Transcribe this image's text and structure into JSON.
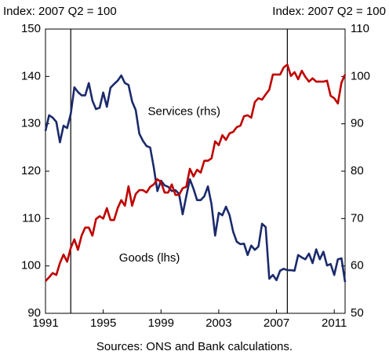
{
  "chart_data": {
    "type": "line",
    "left_axis_label": "Index: 2007 Q2 = 100",
    "right_axis_label": "Index: 2007 Q2 = 100",
    "source": "Sources: ONS and Bank calculations.",
    "annotations": [
      {
        "text": "Services (rhs)",
        "x": 2000.6,
        "y": 132.5
      },
      {
        "text": "Goods (lhs)",
        "x": 1998.2,
        "y": 101.6
      }
    ],
    "vlines": [
      1992.75,
      2007.75
    ],
    "x": [
      1991,
      1991.25,
      1991.5,
      1991.75,
      1992,
      1992.25,
      1992.5,
      1992.75,
      1993,
      1993.25,
      1993.5,
      1993.75,
      1994,
      1994.25,
      1994.5,
      1994.75,
      1995,
      1995.25,
      1995.5,
      1995.75,
      1996,
      1996.25,
      1996.5,
      1996.75,
      1997,
      1997.25,
      1997.5,
      1997.75,
      1998,
      1998.25,
      1998.5,
      1998.75,
      1999,
      1999.25,
      1999.5,
      1999.75,
      2000,
      2000.25,
      2000.5,
      2000.75,
      2001,
      2001.25,
      2001.5,
      2001.75,
      2002,
      2002.25,
      2002.5,
      2002.75,
      2003,
      2003.25,
      2003.5,
      2003.75,
      2004,
      2004.25,
      2004.5,
      2004.75,
      2005,
      2005.25,
      2005.5,
      2005.75,
      2006,
      2006.25,
      2006.5,
      2006.75,
      2007,
      2007.25,
      2007.5,
      2007.75,
      2008,
      2008.25,
      2008.5,
      2008.75,
      2009,
      2009.25,
      2009.5,
      2009.75,
      2010,
      2010.25,
      2010.5,
      2010.75,
      2011,
      2011.25,
      2011.5,
      2011.75
    ],
    "series": [
      {
        "name": "Goods (lhs)",
        "color": "#1b2a6b",
        "axis": "y",
        "values": [
          128.5,
          131.8,
          131.3,
          130.4,
          126.1,
          129.6,
          129.1,
          132.1,
          137.7,
          136.7,
          136,
          136,
          138.6,
          134.9,
          133.1,
          133.4,
          136.6,
          133.6,
          137.6,
          138.4,
          139.1,
          140.2,
          138.6,
          138.2,
          134.7,
          132.9,
          127.9,
          126.4,
          125.3,
          125,
          120.8,
          115.8,
          118,
          117,
          116.7,
          115.8,
          116,
          115.2,
          110.9,
          114.7,
          118.3,
          116.3,
          113.9,
          113.9,
          114.7,
          116.8,
          113,
          106.4,
          111.2,
          110.7,
          112.5,
          110.7,
          107.2,
          105.1,
          104.6,
          104.7,
          102.3,
          104.3,
          103.4,
          104.1,
          108.9,
          108.2,
          97.3,
          98.1,
          97,
          99,
          99.4,
          99.1,
          99.1,
          99,
          102.3,
          101.8,
          101.4,
          102.6,
          100.6,
          103.5,
          101.4,
          103,
          100.1,
          100.4,
          98.1,
          101.4,
          101.6,
          96.6
        ]
      },
      {
        "name": "Services (rhs)",
        "color": "#c00000",
        "axis": "y2",
        "values": [
          56.8,
          57.6,
          58.5,
          58.1,
          60.6,
          62.4,
          60.9,
          63.8,
          65.6,
          63.4,
          66.4,
          68.1,
          68.1,
          66.4,
          69.9,
          70.5,
          70,
          72.2,
          69.7,
          69.7,
          72.2,
          73.9,
          72.7,
          76.8,
          72.7,
          75.2,
          76,
          76,
          75.5,
          76.7,
          77.2,
          78.3,
          77.7,
          75.5,
          75.5,
          77.2,
          75,
          75,
          76.4,
          76.7,
          80.5,
          78.9,
          80.3,
          79.7,
          82.2,
          82.2,
          82.7,
          86.3,
          85.5,
          87.6,
          86.6,
          88,
          88.3,
          89.3,
          89.6,
          91.6,
          91.8,
          91.3,
          94.6,
          95.4,
          95.1,
          96.2,
          97.2,
          100.4,
          100.4,
          100.4,
          101.9,
          102.5,
          100.1,
          100.9,
          99.4,
          101.2,
          99.9,
          98.9,
          99.6,
          98.9,
          98.9,
          98.9,
          99.1,
          95.9,
          95.4,
          94.3,
          98.7,
          100.4
        ]
      }
    ],
    "xlim": [
      1991,
      2011.75
    ],
    "xticks": [
      1991,
      1995,
      1999,
      2003,
      2007,
      2011
    ],
    "ylim": [
      90,
      150
    ],
    "yticks": [
      90,
      100,
      110,
      120,
      130,
      140,
      150
    ],
    "y2lim": [
      50,
      110
    ],
    "y2ticks": [
      50,
      60,
      70,
      80,
      90,
      100,
      110
    ],
    "grid": false
  }
}
